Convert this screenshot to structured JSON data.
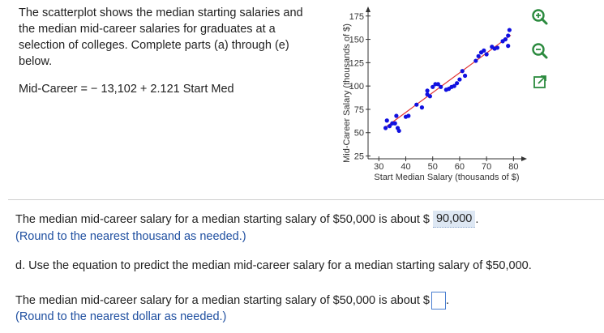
{
  "intro": {
    "line1": "The scatterplot shows the median starting salaries and",
    "line2": "the median mid-career salaries for graduates at a",
    "line3": "selection of colleges. Complete parts (a) through (e)",
    "line4": "below."
  },
  "equation": "Mid-Career = − 13,102 + 2.121 Start Med",
  "tools": {
    "zoom_in": "zoom-in",
    "zoom_out": "zoom-out",
    "expand": "expand"
  },
  "answer_c": {
    "sentence": "The median mid-career salary for a median starting salary of $50,000 is about $",
    "value": "90,000",
    "period": ".",
    "hint": "(Round to the nearest thousand as needed.)"
  },
  "part_d": {
    "question": "d. Use the equation to predict the median mid-career salary for a median starting salary of $50,000.",
    "sentence": "The median mid-career salary for a median starting salary of $50,000 is about $",
    "period": ".",
    "hint": "(Round to the nearest dollar as needed.)"
  },
  "chart_data": {
    "type": "scatter",
    "xlabel": "Start Median Salary (thousands of $)",
    "ylabel": "Mid-Career Salary (thousands of $)",
    "xlim": [
      26,
      82
    ],
    "ylim": [
      22,
      180
    ],
    "xticks": [
      30,
      40,
      50,
      60,
      70,
      80
    ],
    "yticks": [
      25,
      50,
      75,
      100,
      125,
      150,
      175
    ],
    "point_color": "#1010e0",
    "line_color": "#e03030",
    "trend_line": {
      "intercept": -13.102,
      "slope": 2.121,
      "x_range": [
        32,
        79
      ]
    },
    "points": [
      [
        32.5,
        55
      ],
      [
        33,
        63
      ],
      [
        34,
        57
      ],
      [
        35,
        60
      ],
      [
        36,
        60
      ],
      [
        36.5,
        68
      ],
      [
        37,
        55
      ],
      [
        37.5,
        52
      ],
      [
        40,
        67
      ],
      [
        41,
        68
      ],
      [
        44,
        80
      ],
      [
        46,
        77
      ],
      [
        48,
        95
      ],
      [
        48,
        91
      ],
      [
        49,
        89
      ],
      [
        50,
        99
      ],
      [
        51,
        102
      ],
      [
        52,
        102
      ],
      [
        53,
        99
      ],
      [
        55,
        96
      ],
      [
        56,
        97
      ],
      [
        57,
        99
      ],
      [
        58,
        100
      ],
      [
        59,
        103
      ],
      [
        60,
        107
      ],
      [
        61,
        116
      ],
      [
        62,
        111
      ],
      [
        66,
        127
      ],
      [
        67,
        132
      ],
      [
        68,
        136
      ],
      [
        69,
        138
      ],
      [
        70,
        134
      ],
      [
        72,
        142
      ],
      [
        73,
        140
      ],
      [
        74,
        141
      ],
      [
        76,
        148
      ],
      [
        77,
        150
      ],
      [
        78,
        143
      ],
      [
        78,
        154
      ],
      [
        78.5,
        160
      ]
    ]
  }
}
